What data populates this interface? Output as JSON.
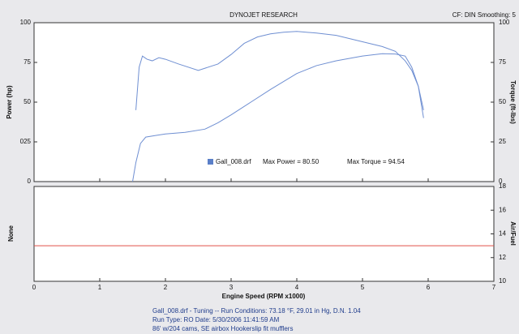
{
  "header": {
    "title": "DYNOJET RESEARCH",
    "settings": "CF: DIN  Smoothing: 5"
  },
  "footer": {
    "lines": [
      "Gall_008.drf - Tuning -- Run Conditions: 73.18 °F, 29.01 in Hg, D.N. 1.04",
      "Run Type: RO  Date: 5/30/2006 11:41:59 AM",
      "86' w/204 cams, SE airbox Hookerslip fit mufflers"
    ]
  },
  "chart_data": [
    {
      "type": "line",
      "y_label": "Power (hp)",
      "y2_label": "Torque (ft-lbs)",
      "xlim": [
        0,
        7
      ],
      "xticks": [
        0,
        1,
        2,
        3,
        4,
        5,
        6,
        7
      ],
      "ylim": [
        0,
        100
      ],
      "yticks": [
        0,
        {
          "value": 25,
          "label": "025"
        },
        50,
        75,
        100
      ],
      "y2lim": [
        0,
        100
      ],
      "y2ticks": [
        0,
        25,
        50,
        75,
        100
      ],
      "legend": {
        "name": "Gall_008.drf",
        "max_power": "Max Power = 80.50",
        "max_torque": "Max Torque = 94.54"
      },
      "series": [
        {
          "color": "#6f8fd2",
          "x": [
            1.5,
            1.55,
            1.62,
            1.7,
            1.85,
            2.0,
            2.3,
            2.6,
            2.8,
            3.0,
            3.3,
            3.6,
            4.0,
            4.3,
            4.6,
            5.0,
            5.3,
            5.5,
            5.65,
            5.75,
            5.85,
            5.93
          ],
          "values": [
            0,
            12,
            24,
            28,
            29,
            30,
            31,
            33,
            37,
            42,
            50,
            58,
            68,
            73,
            76,
            79,
            80.5,
            80.3,
            79,
            72,
            60,
            40
          ]
        },
        {
          "color": "#6f8fd2",
          "axis": "y2",
          "x": [
            1.55,
            1.6,
            1.65,
            1.72,
            1.8,
            1.9,
            2.0,
            2.2,
            2.5,
            2.8,
            3.0,
            3.2,
            3.4,
            3.6,
            3.8,
            4.0,
            4.3,
            4.6,
            5.0,
            5.3,
            5.5,
            5.65,
            5.75,
            5.85,
            5.93
          ],
          "values": [
            45,
            72,
            79,
            77,
            76,
            78,
            77,
            74,
            70,
            74,
            80,
            87,
            91,
            93,
            94,
            94.5,
            93.5,
            92,
            88,
            85,
            82,
            76,
            70,
            60,
            45
          ]
        }
      ]
    },
    {
      "type": "line",
      "y_label": "None",
      "y2_label": "Air/Fuel",
      "x_label": "Engine Speed (RPM x1000)",
      "xlim": [
        0,
        7
      ],
      "xticks": [
        0,
        1,
        2,
        3,
        4,
        5,
        6,
        7
      ],
      "y2lim": [
        10,
        18
      ],
      "y2ticks": [
        10,
        12,
        14,
        16,
        18
      ],
      "series": [
        {
          "color": "#e0524a",
          "axis": "y2",
          "x": [
            0,
            7
          ],
          "values": [
            13,
            13
          ]
        }
      ]
    }
  ]
}
